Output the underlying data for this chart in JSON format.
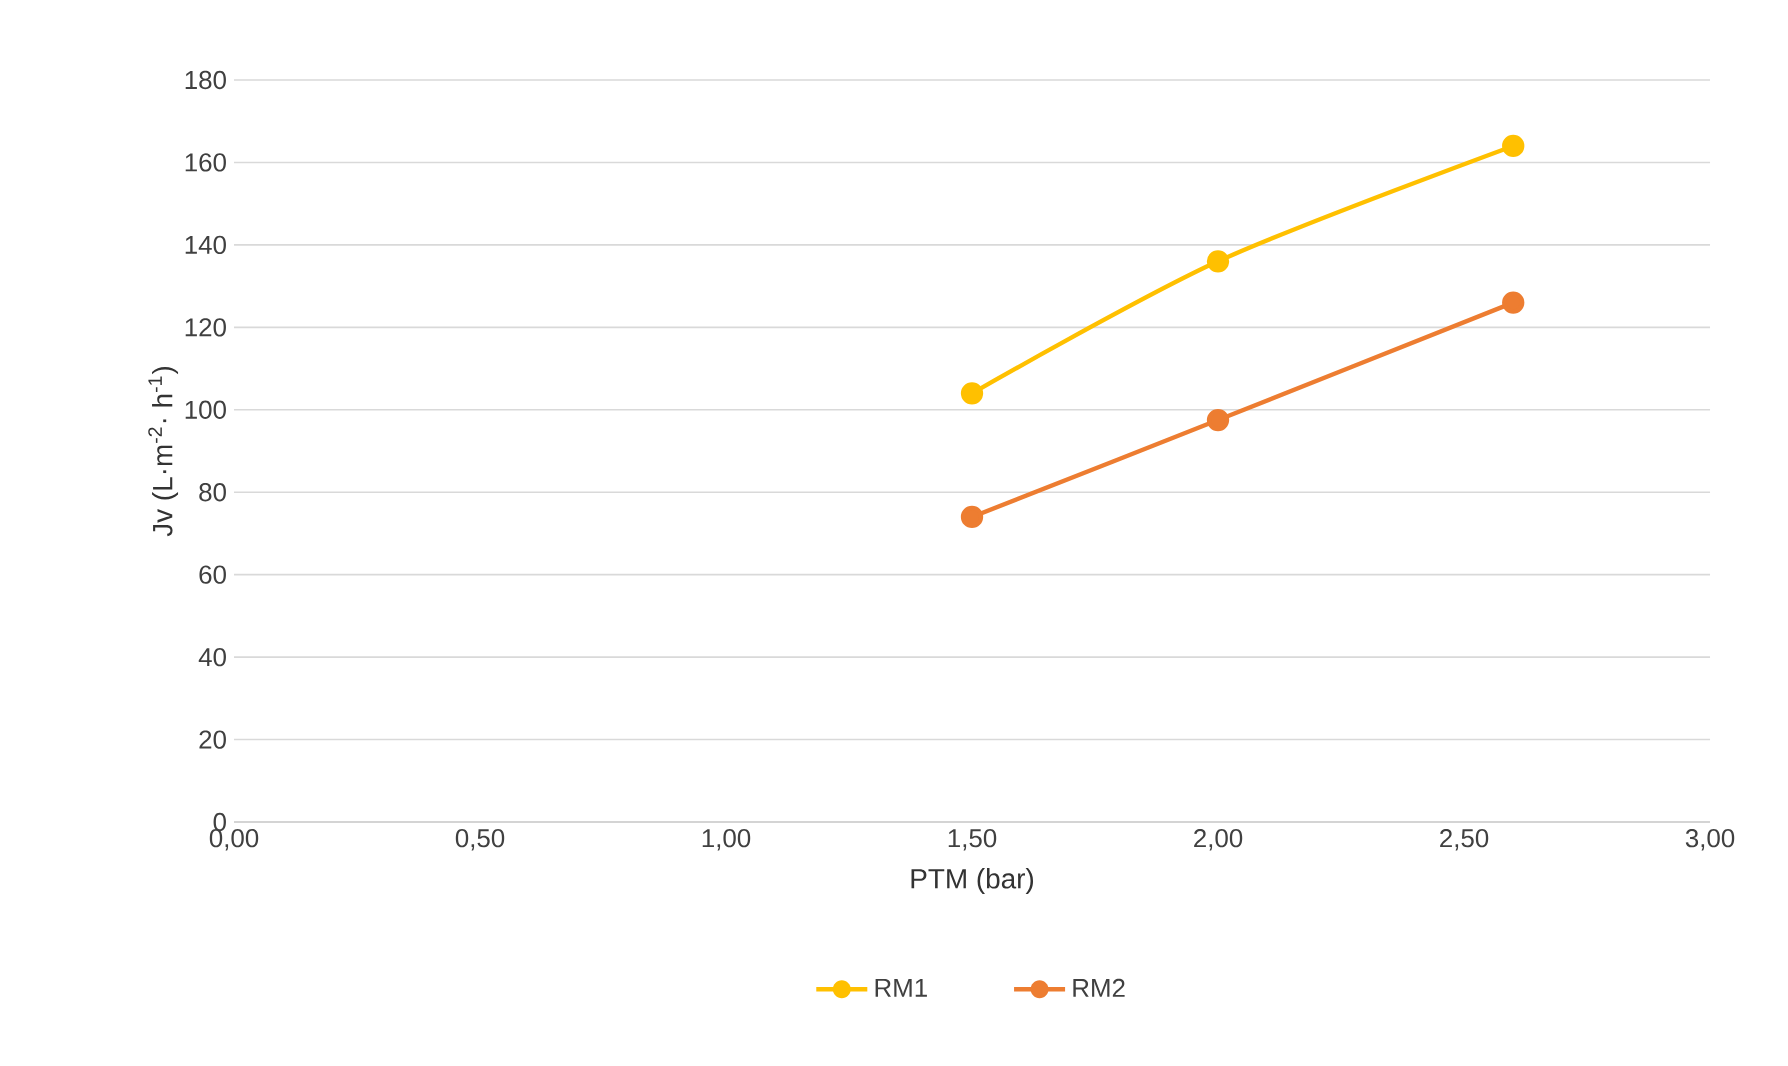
{
  "chart_data": {
    "type": "line",
    "xlabel": "PTM (bar)",
    "ylabel": "Jv (L·m$^{-2}$· h$^{-1}$)",
    "xlim": [
      0,
      3
    ],
    "ylim": [
      0,
      180
    ],
    "xticks": [
      {
        "value": 0,
        "label": "0,00"
      },
      {
        "value": 0.5,
        "label": "0,50"
      },
      {
        "value": 1,
        "label": "1,00"
      },
      {
        "value": 1.5,
        "label": "1,50"
      },
      {
        "value": 2,
        "label": "2,00"
      },
      {
        "value": 2.5,
        "label": "2,50"
      },
      {
        "value": 3,
        "label": "3,00"
      }
    ],
    "yticks": [
      0,
      20,
      40,
      60,
      80,
      100,
      120,
      140,
      160,
      180
    ],
    "grid": "y",
    "legend": "bottom",
    "marker": "circle",
    "line_style": "solid",
    "series": [
      {
        "name": "RM1",
        "color": "#ffc000",
        "x": [
          1.5,
          2.0,
          2.6
        ],
        "values": [
          104,
          136,
          164
        ]
      },
      {
        "name": "RM2",
        "color": "#ed7d31",
        "x": [
          1.5,
          2.0,
          2.6
        ],
        "values": [
          74,
          97.5,
          126
        ]
      }
    ]
  }
}
